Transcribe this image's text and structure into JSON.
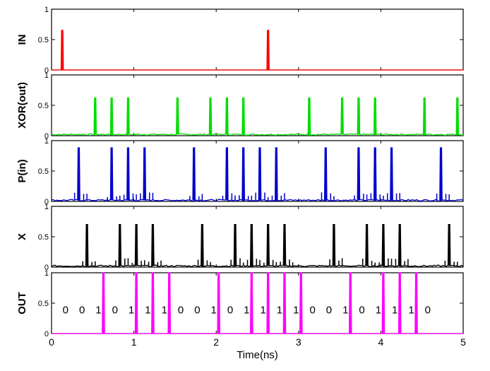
{
  "chart_data": {
    "type": "line",
    "xlabel": "Time(ns)",
    "xlim": [
      0,
      5
    ],
    "xticks": [
      0,
      1,
      2,
      3,
      4,
      5
    ],
    "panels": [
      {
        "ylabel": "IN",
        "color": "#ff0000",
        "ylim": [
          0,
          1
        ],
        "yticks": [
          0,
          0.5,
          1
        ],
        "baseline": 0.0,
        "pulses": [
          {
            "t": 0.13,
            "h": 0.65
          },
          {
            "t": 2.63,
            "h": 0.65
          }
        ]
      },
      {
        "ylabel": "XOR(out)",
        "color": "#00dd00",
        "ylim": [
          0,
          1
        ],
        "yticks": [
          0,
          0.5,
          1
        ],
        "baseline": 0.02,
        "pulses": [
          {
            "t": 0.53,
            "h": 0.62
          },
          {
            "t": 0.73,
            "h": 0.62
          },
          {
            "t": 0.93,
            "h": 0.62
          },
          {
            "t": 1.53,
            "h": 0.62
          },
          {
            "t": 1.93,
            "h": 0.62
          },
          {
            "t": 2.13,
            "h": 0.62
          },
          {
            "t": 2.33,
            "h": 0.62
          },
          {
            "t": 3.13,
            "h": 0.62
          },
          {
            "t": 3.53,
            "h": 0.62
          },
          {
            "t": 3.73,
            "h": 0.62
          },
          {
            "t": 3.93,
            "h": 0.62
          },
          {
            "t": 4.53,
            "h": 0.62
          },
          {
            "t": 4.93,
            "h": 0.62
          }
        ]
      },
      {
        "ylabel": "P(in)",
        "color": "#0000cc",
        "ylim": [
          0,
          1
        ],
        "yticks": [
          0,
          0.5,
          1
        ],
        "baseline": 0.02,
        "pulses": [
          {
            "t": 0.33,
            "h": 0.88
          },
          {
            "t": 0.73,
            "h": 0.88
          },
          {
            "t": 0.93,
            "h": 0.88
          },
          {
            "t": 1.13,
            "h": 0.88
          },
          {
            "t": 1.73,
            "h": 0.88
          },
          {
            "t": 2.13,
            "h": 0.88
          },
          {
            "t": 2.33,
            "h": 0.88
          },
          {
            "t": 2.53,
            "h": 0.88
          },
          {
            "t": 2.73,
            "h": 0.88
          },
          {
            "t": 3.33,
            "h": 0.88
          },
          {
            "t": 3.73,
            "h": 0.88
          },
          {
            "t": 3.93,
            "h": 0.88
          },
          {
            "t": 4.13,
            "h": 0.88
          },
          {
            "t": 4.73,
            "h": 0.88
          }
        ]
      },
      {
        "ylabel": "X",
        "color": "#000000",
        "ylim": [
          0,
          1
        ],
        "yticks": [
          0,
          0.5,
          1
        ],
        "baseline": 0.02,
        "pulses": [
          {
            "t": 0.43,
            "h": 0.7
          },
          {
            "t": 0.83,
            "h": 0.7
          },
          {
            "t": 1.03,
            "h": 0.7
          },
          {
            "t": 1.23,
            "h": 0.7
          },
          {
            "t": 1.83,
            "h": 0.7
          },
          {
            "t": 2.23,
            "h": 0.7
          },
          {
            "t": 2.43,
            "h": 0.7
          },
          {
            "t": 2.63,
            "h": 0.7
          },
          {
            "t": 2.83,
            "h": 0.7
          },
          {
            "t": 3.43,
            "h": 0.7
          },
          {
            "t": 3.83,
            "h": 0.7
          },
          {
            "t": 4.03,
            "h": 0.7
          },
          {
            "t": 4.23,
            "h": 0.7
          },
          {
            "t": 4.83,
            "h": 0.7
          }
        ]
      },
      {
        "ylabel": "OUT",
        "color": "#ff00ff",
        "ylim": [
          0,
          1
        ],
        "yticks": [
          0,
          0.5,
          1
        ],
        "baseline": 0.0,
        "pulses": [
          {
            "t": 0.63,
            "h": 1.0
          },
          {
            "t": 1.03,
            "h": 1.0
          },
          {
            "t": 1.23,
            "h": 1.0
          },
          {
            "t": 1.43,
            "h": 1.0
          },
          {
            "t": 2.03,
            "h": 1.0
          },
          {
            "t": 2.43,
            "h": 1.0
          },
          {
            "t": 2.63,
            "h": 1.0
          },
          {
            "t": 2.83,
            "h": 1.0
          },
          {
            "t": 3.03,
            "h": 1.0
          },
          {
            "t": 3.63,
            "h": 1.0
          },
          {
            "t": 4.03,
            "h": 1.0
          },
          {
            "t": 4.23,
            "h": 1.0
          },
          {
            "t": 4.43,
            "h": 1.0
          }
        ],
        "bit_labels": [
          {
            "t": 0.23,
            "text": "0"
          },
          {
            "t": 0.43,
            "text": "0"
          },
          {
            "t": 0.63,
            "text": "1"
          },
          {
            "t": 0.83,
            "text": "0"
          },
          {
            "t": 1.03,
            "text": "1"
          },
          {
            "t": 1.23,
            "text": "1"
          },
          {
            "t": 1.43,
            "text": "1"
          },
          {
            "t": 1.63,
            "text": "0"
          },
          {
            "t": 1.83,
            "text": "0"
          },
          {
            "t": 2.03,
            "text": "1"
          },
          {
            "t": 2.23,
            "text": "0"
          },
          {
            "t": 2.43,
            "text": "1"
          },
          {
            "t": 2.63,
            "text": "1"
          },
          {
            "t": 2.83,
            "text": "1"
          },
          {
            "t": 3.03,
            "text": "1"
          },
          {
            "t": 3.23,
            "text": "0"
          },
          {
            "t": 3.43,
            "text": "0"
          },
          {
            "t": 3.63,
            "text": "1"
          },
          {
            "t": 3.83,
            "text": "0"
          },
          {
            "t": 4.03,
            "text": "1"
          },
          {
            "t": 4.23,
            "text": "1"
          },
          {
            "t": 4.43,
            "text": "1"
          },
          {
            "t": 4.63,
            "text": "0"
          }
        ]
      }
    ]
  }
}
